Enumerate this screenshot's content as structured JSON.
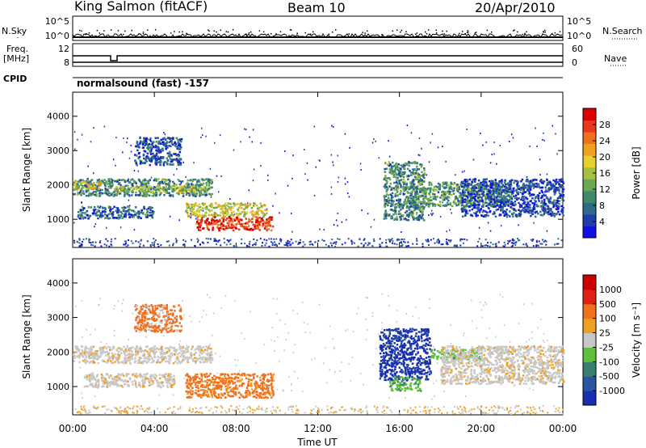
{
  "header": {
    "station": "King Salmon (fitACF)",
    "beam": "Beam 10",
    "date": "20/Apr/2010"
  },
  "side_labels": {
    "nsky": "N.Sky",
    "nsearch": "N.Search",
    "freq_line1": "Freq.",
    "freq_line2": "[MHz]",
    "nave": "Nave",
    "cpid": "CPID"
  },
  "top_panels": {
    "nsky_ticks": [
      "10^5",
      "10^0"
    ],
    "nsearch_ticks": [
      "10^5",
      "10^0"
    ],
    "freq_ticks": [
      "12",
      "8"
    ],
    "nave_ticks": [
      "60",
      "0"
    ],
    "cpid_text": "normalsound (fast) -157"
  },
  "chart_data": [
    {
      "type": "heatmap",
      "name": "power",
      "ylabel": "Slant Range [km]",
      "y_ticks": [
        1000,
        2000,
        3000,
        4000
      ],
      "ylim": [
        180,
        4700
      ],
      "xlim": [
        0,
        24
      ],
      "x_ticks": [
        "00:00",
        "04:00",
        "08:00",
        "12:00",
        "16:00",
        "20:00",
        "00:00"
      ],
      "colorbar": {
        "label": "Power [dB]",
        "ticks": [
          4,
          8,
          12,
          16,
          20,
          24,
          28
        ],
        "range": [
          0,
          32
        ],
        "colors": [
          "#1010e0",
          "#1f3fa8",
          "#2e6a8a",
          "#3f8a6a",
          "#6ca850",
          "#a8c040",
          "#e6d030",
          "#f0a020",
          "#f07020",
          "#e83a18",
          "#dd0000"
        ]
      },
      "regions": [
        {
          "t0": 0.0,
          "t1": 6.8,
          "r0": 1700,
          "r1": 2200,
          "level": 0.3
        },
        {
          "t0": 0.0,
          "t1": 1.5,
          "r0": 1900,
          "r1": 2100,
          "level": 0.55
        },
        {
          "t0": 2.0,
          "t1": 6.5,
          "r0": 1800,
          "r1": 2000,
          "level": 0.5
        },
        {
          "t0": 0.2,
          "t1": 4.0,
          "r0": 1050,
          "r1": 1400,
          "level": 0.22
        },
        {
          "t0": 3.0,
          "t1": 5.3,
          "r0": 2600,
          "r1": 3400,
          "level": 0.18
        },
        {
          "t0": 5.5,
          "t1": 9.5,
          "r0": 1100,
          "r1": 1500,
          "level": 0.55
        },
        {
          "t0": 6.0,
          "t1": 9.8,
          "r0": 700,
          "r1": 1100,
          "level": 0.9
        },
        {
          "t0": 15.2,
          "t1": 17.2,
          "r0": 1000,
          "r1": 2700,
          "level": 0.3
        },
        {
          "t0": 16.5,
          "t1": 21.5,
          "r0": 1400,
          "r1": 2100,
          "level": 0.35
        },
        {
          "t0": 19.0,
          "t1": 24.0,
          "r0": 1100,
          "r1": 2200,
          "level": 0.15
        }
      ]
    },
    {
      "type": "heatmap",
      "name": "velocity",
      "ylabel": "Slant Range [km]",
      "y_ticks": [
        1000,
        2000,
        3000,
        4000
      ],
      "ylim": [
        180,
        4700
      ],
      "xlim": [
        0,
        24
      ],
      "x_ticks": [
        "00:00",
        "04:00",
        "08:00",
        "12:00",
        "16:00",
        "20:00",
        "00:00"
      ],
      "xlabel": "Time UT",
      "colorbar": {
        "label": "Velocity [m s⁻¹]",
        "ticks": [
          "1000",
          "500",
          "100",
          "25",
          "-25",
          "-100",
          "-500",
          "-1000"
        ],
        "colors": [
          "#1a2fb0",
          "#2a55a0",
          "#3a7f70",
          "#5fc03a",
          "#c8c8c8",
          "#f0a020",
          "#f07020",
          "#e02010",
          "#cc0000"
        ]
      },
      "regions": [
        {
          "t0": 0.0,
          "t1": 6.8,
          "r0": 1700,
          "r1": 2200,
          "cls": "gray"
        },
        {
          "t0": 0.5,
          "t1": 5.0,
          "r0": 1000,
          "r1": 1400,
          "cls": "gray"
        },
        {
          "t0": 3.0,
          "t1": 5.3,
          "r0": 2600,
          "r1": 3400,
          "cls": "brown"
        },
        {
          "t0": 5.5,
          "t1": 9.8,
          "r0": 700,
          "r1": 1400,
          "cls": "orange"
        },
        {
          "t0": 15.0,
          "t1": 17.5,
          "r0": 1200,
          "r1": 2700,
          "cls": "blue"
        },
        {
          "t0": 15.5,
          "t1": 17.0,
          "r0": 900,
          "r1": 1300,
          "cls": "green"
        },
        {
          "t0": 17.5,
          "t1": 20.0,
          "r0": 1800,
          "r1": 2100,
          "cls": "green"
        },
        {
          "t0": 18.0,
          "t1": 24.0,
          "r0": 1100,
          "r1": 2200,
          "cls": "gray"
        }
      ]
    }
  ]
}
